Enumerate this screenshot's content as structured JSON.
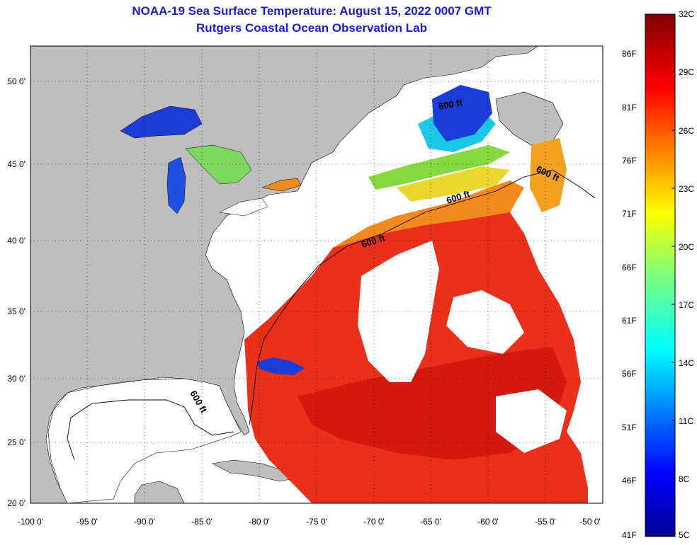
{
  "title": {
    "line1": "NOAA-19 Sea Surface Temperature:  August 15, 2022 0007 GMT",
    "line2": "Rutgers Coastal Ocean Observation Lab"
  },
  "map": {
    "lat_ticks": [
      "50 0'",
      "45 0'",
      "40 0'",
      "35 0'",
      "30 0'",
      "25 0'",
      "20 0'"
    ],
    "lon_ticks": [
      "-100 0'",
      "-95 0'",
      "-90 0'",
      "-85 0'",
      "-80 0'",
      "-75 0'",
      "-70 0'",
      "-65 0'",
      "-60 0'",
      "-55 0'",
      "-50 0'"
    ],
    "contour_label": "600 ft",
    "colors": {
      "land": "#bebebe",
      "cloud": "#ffffff",
      "ocean_warm": "#e8301a",
      "ocean_hot": "#d41a10",
      "orange": "#f08a1c",
      "yellow": "#f4d21c",
      "green": "#86d840",
      "cyan": "#1cc8e8",
      "blue": "#1c3cd8"
    }
  },
  "colorbar": {
    "celsius": [
      "32C",
      "29C",
      "26C",
      "23C",
      "20C",
      "17C",
      "14C",
      "11C",
      "8C",
      "5C"
    ],
    "fahrenheit": [
      "86F",
      "81F",
      "76F",
      "71F",
      "66F",
      "61F",
      "56F",
      "51F",
      "46F",
      "41F"
    ]
  }
}
